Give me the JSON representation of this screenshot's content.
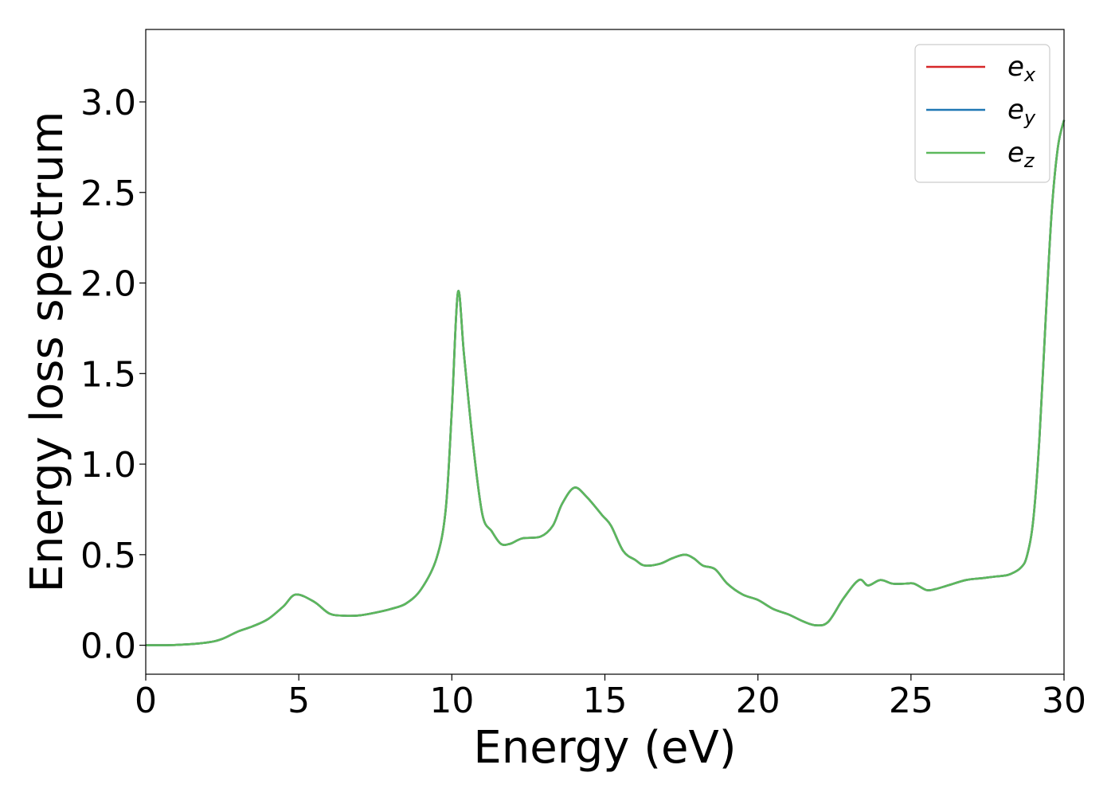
{
  "chart_data": {
    "type": "line",
    "xlabel": "Energy (eV)",
    "ylabel": "Energy loss spectrum",
    "xlim": [
      0,
      30
    ],
    "ylim": [
      -0.16,
      3.4
    ],
    "xticks": [
      0,
      5,
      10,
      15,
      20,
      25,
      30
    ],
    "xtick_labels": [
      "0",
      "5",
      "10",
      "15",
      "20",
      "25",
      "30"
    ],
    "yticks": [
      0.0,
      0.5,
      1.0,
      1.5,
      2.0,
      2.5,
      3.0
    ],
    "ytick_labels": [
      "0.0",
      "0.5",
      "1.0",
      "1.5",
      "2.0",
      "2.5",
      "3.0"
    ],
    "grid": false,
    "legend_position": "top-right",
    "series": [
      {
        "name": "e",
        "subscript": "x",
        "color": "#d62728",
        "x": [
          0,
          1,
          2,
          2.5,
          3,
          3.5,
          4,
          4.5,
          4.9,
          5.5,
          6,
          6.5,
          7,
          7.5,
          8,
          8.5,
          9,
          9.5,
          9.8,
          10,
          10.2,
          10.4,
          10.7,
          11,
          11.3,
          11.6,
          11.9,
          12.3,
          12.9,
          13.3,
          13.6,
          14.0,
          14.4,
          14.9,
          15.2,
          15.6,
          16.0,
          16.3,
          16.8,
          17.2,
          17.6,
          17.9,
          18.2,
          18.6,
          19.0,
          19.5,
          20.0,
          20.5,
          21.0,
          21.5,
          21.9,
          22.3,
          22.8,
          23.3,
          23.6,
          24.0,
          24.4,
          24.8,
          25.1,
          25.5,
          25.8,
          26.2,
          26.8,
          27.3,
          27.8,
          28.2,
          28.6,
          28.8,
          29.0,
          29.2,
          29.4,
          29.6,
          29.8,
          30.0
        ],
        "y": [
          0.0,
          0.002,
          0.015,
          0.035,
          0.075,
          0.105,
          0.145,
          0.215,
          0.28,
          0.24,
          0.175,
          0.163,
          0.165,
          0.18,
          0.2,
          0.23,
          0.31,
          0.48,
          0.75,
          1.3,
          1.95,
          1.6,
          1.1,
          0.72,
          0.63,
          0.56,
          0.56,
          0.59,
          0.6,
          0.66,
          0.78,
          0.87,
          0.82,
          0.72,
          0.66,
          0.52,
          0.47,
          0.44,
          0.45,
          0.48,
          0.5,
          0.48,
          0.44,
          0.42,
          0.34,
          0.28,
          0.25,
          0.2,
          0.17,
          0.13,
          0.11,
          0.13,
          0.26,
          0.36,
          0.33,
          0.36,
          0.34,
          0.34,
          0.34,
          0.305,
          0.31,
          0.33,
          0.36,
          0.37,
          0.38,
          0.39,
          0.43,
          0.5,
          0.7,
          1.15,
          1.8,
          2.4,
          2.75,
          2.9
        ]
      },
      {
        "name": "e",
        "subscript": "y",
        "color": "#1f77b4",
        "x": [
          0,
          1,
          2,
          2.5,
          3,
          3.5,
          4,
          4.5,
          4.9,
          5.5,
          6,
          6.5,
          7,
          7.5,
          8,
          8.5,
          9,
          9.5,
          9.8,
          10,
          10.2,
          10.4,
          10.7,
          11,
          11.3,
          11.6,
          11.9,
          12.3,
          12.9,
          13.3,
          13.6,
          14.0,
          14.4,
          14.9,
          15.2,
          15.6,
          16.0,
          16.3,
          16.8,
          17.2,
          17.6,
          17.9,
          18.2,
          18.6,
          19.0,
          19.5,
          20.0,
          20.5,
          21.0,
          21.5,
          21.9,
          22.3,
          22.8,
          23.3,
          23.6,
          24.0,
          24.4,
          24.8,
          25.1,
          25.5,
          25.8,
          26.2,
          26.8,
          27.3,
          27.8,
          28.2,
          28.6,
          28.8,
          29.0,
          29.2,
          29.4,
          29.6,
          29.8,
          30.0
        ],
        "y": [
          0.0,
          0.002,
          0.015,
          0.035,
          0.075,
          0.105,
          0.145,
          0.215,
          0.28,
          0.24,
          0.175,
          0.163,
          0.165,
          0.18,
          0.2,
          0.23,
          0.31,
          0.48,
          0.75,
          1.3,
          1.95,
          1.6,
          1.1,
          0.72,
          0.63,
          0.56,
          0.56,
          0.59,
          0.6,
          0.66,
          0.78,
          0.87,
          0.82,
          0.72,
          0.66,
          0.52,
          0.47,
          0.44,
          0.45,
          0.48,
          0.5,
          0.48,
          0.44,
          0.42,
          0.34,
          0.28,
          0.25,
          0.2,
          0.17,
          0.13,
          0.11,
          0.13,
          0.26,
          0.36,
          0.33,
          0.36,
          0.34,
          0.34,
          0.34,
          0.305,
          0.31,
          0.33,
          0.36,
          0.37,
          0.38,
          0.39,
          0.43,
          0.5,
          0.7,
          1.15,
          1.8,
          2.4,
          2.75,
          2.9
        ]
      },
      {
        "name": "e",
        "subscript": "z",
        "color": "#5cb85c",
        "x": [
          0,
          1,
          2,
          2.5,
          3,
          3.5,
          4,
          4.5,
          4.9,
          5.5,
          6,
          6.5,
          7,
          7.5,
          8,
          8.5,
          9,
          9.5,
          9.8,
          10,
          10.2,
          10.4,
          10.7,
          11,
          11.3,
          11.6,
          11.9,
          12.3,
          12.9,
          13.3,
          13.6,
          14.0,
          14.4,
          14.9,
          15.2,
          15.6,
          16.0,
          16.3,
          16.8,
          17.2,
          17.6,
          17.9,
          18.2,
          18.6,
          19.0,
          19.5,
          20.0,
          20.5,
          21.0,
          21.5,
          21.9,
          22.3,
          22.8,
          23.3,
          23.6,
          24.0,
          24.4,
          24.8,
          25.1,
          25.5,
          25.8,
          26.2,
          26.8,
          27.3,
          27.8,
          28.2,
          28.6,
          28.8,
          29.0,
          29.2,
          29.4,
          29.6,
          29.8,
          30.0
        ],
        "y": [
          0.0,
          0.002,
          0.015,
          0.035,
          0.075,
          0.105,
          0.145,
          0.215,
          0.28,
          0.24,
          0.175,
          0.163,
          0.165,
          0.18,
          0.2,
          0.23,
          0.31,
          0.48,
          0.75,
          1.3,
          1.95,
          1.6,
          1.1,
          0.72,
          0.63,
          0.56,
          0.56,
          0.59,
          0.6,
          0.66,
          0.78,
          0.87,
          0.82,
          0.72,
          0.66,
          0.52,
          0.47,
          0.44,
          0.45,
          0.48,
          0.5,
          0.48,
          0.44,
          0.42,
          0.34,
          0.28,
          0.25,
          0.2,
          0.17,
          0.13,
          0.11,
          0.13,
          0.26,
          0.36,
          0.33,
          0.36,
          0.34,
          0.34,
          0.34,
          0.305,
          0.31,
          0.33,
          0.36,
          0.37,
          0.38,
          0.39,
          0.43,
          0.5,
          0.7,
          1.15,
          1.8,
          2.4,
          2.75,
          2.9
        ]
      }
    ]
  }
}
